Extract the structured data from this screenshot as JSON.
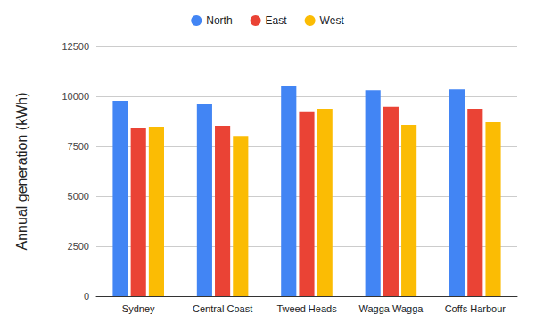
{
  "chart_data": {
    "type": "bar",
    "y_label": "Annual generation (kWh)",
    "categories": [
      "Sydney",
      "Central Coast",
      "Tweed Heads",
      "Wagga Wagga",
      "Coffs Harbour"
    ],
    "series": [
      {
        "name": "North",
        "color": "#4285f4",
        "values": [
          9780,
          9600,
          10540,
          10300,
          10350
        ]
      },
      {
        "name": "East",
        "color": "#ea4335",
        "values": [
          8440,
          8530,
          9250,
          9470,
          9380
        ]
      },
      {
        "name": "West",
        "color": "#fbbc04",
        "values": [
          8480,
          8030,
          9370,
          8570,
          8710
        ]
      }
    ],
    "ylim": [
      0,
      12500
    ],
    "yticks": [
      0,
      2500,
      5000,
      7500,
      10000,
      12500
    ],
    "grid": true,
    "legend": "top"
  }
}
